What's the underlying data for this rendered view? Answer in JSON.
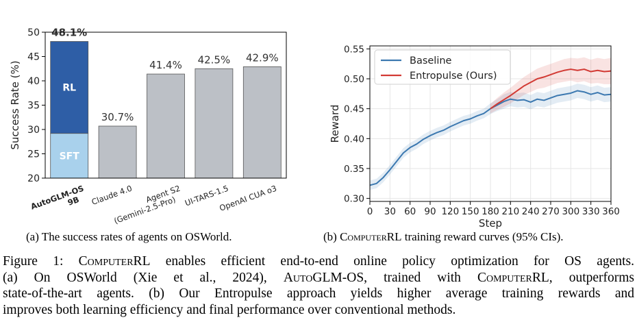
{
  "chart_data": [
    {
      "type": "bar",
      "ylabel": "Success Rate (%)",
      "ylim": [
        20,
        50
      ],
      "yticks": [
        20,
        25,
        30,
        35,
        40,
        45,
        50
      ],
      "categories": [
        "AutoGLM-OS\n9B",
        "Claude 4.0",
        "Agent S2\n(Gemini-2.5-Pro)",
        "UI-TARS-1.5",
        "OpenAI CUA o3"
      ],
      "values": [
        48.1,
        30.7,
        41.4,
        42.5,
        42.9
      ],
      "value_labels": [
        "48.1%",
        "30.7%",
        "41.4%",
        "42.5%",
        "42.9%"
      ],
      "stacked_first_bar": [
        {
          "name": "SFT",
          "value": 29.2,
          "color": "#a9d1ec"
        },
        {
          "name": "RL",
          "value": 18.9,
          "color": "#2e5ea6"
        }
      ],
      "bar_color": "#bcc0c6",
      "highlight_bold_first": true,
      "grid": false
    },
    {
      "type": "line",
      "xlabel": "Step",
      "ylabel": "Reward",
      "xlim": [
        0,
        360
      ],
      "ylim": [
        0.295,
        0.555
      ],
      "xticks": [
        0,
        30,
        60,
        90,
        120,
        150,
        180,
        210,
        240,
        270,
        300,
        330,
        360
      ],
      "yticks": [
        0.3,
        0.35,
        0.4,
        0.45,
        0.5,
        0.55
      ],
      "grid": true,
      "legend": "top-left",
      "series": [
        {
          "name": "Baseline",
          "color": "#3b78b0",
          "x": [
            0,
            10,
            20,
            30,
            40,
            50,
            60,
            70,
            80,
            90,
            100,
            110,
            120,
            130,
            140,
            150,
            160,
            170,
            180,
            190,
            200,
            210,
            220,
            230,
            240,
            250,
            260,
            270,
            280,
            290,
            300,
            310,
            320,
            330,
            340,
            350,
            360
          ],
          "y": [
            0.322,
            0.325,
            0.335,
            0.348,
            0.362,
            0.376,
            0.385,
            0.391,
            0.399,
            0.405,
            0.41,
            0.414,
            0.42,
            0.425,
            0.43,
            0.433,
            0.438,
            0.442,
            0.45,
            0.456,
            0.462,
            0.466,
            0.464,
            0.465,
            0.461,
            0.466,
            0.464,
            0.468,
            0.472,
            0.474,
            0.476,
            0.48,
            0.478,
            0.474,
            0.477,
            0.473,
            0.474
          ],
          "ci_halfwidth": [
            0.008,
            0.008,
            0.008,
            0.008,
            0.008,
            0.008,
            0.008,
            0.008,
            0.008,
            0.008,
            0.008,
            0.008,
            0.008,
            0.008,
            0.008,
            0.008,
            0.008,
            0.008,
            0.009,
            0.01,
            0.012,
            0.012,
            0.012,
            0.012,
            0.012,
            0.012,
            0.012,
            0.012,
            0.012,
            0.012,
            0.012,
            0.012,
            0.012,
            0.012,
            0.012,
            0.012,
            0.012
          ]
        },
        {
          "name": "Entropulse (Ours)",
          "color": "#d23a34",
          "x": [
            180,
            190,
            200,
            210,
            220,
            230,
            240,
            250,
            260,
            270,
            280,
            290,
            300,
            310,
            320,
            330,
            340,
            350,
            360
          ],
          "y": [
            0.45,
            0.458,
            0.465,
            0.472,
            0.48,
            0.488,
            0.494,
            0.5,
            0.503,
            0.507,
            0.511,
            0.514,
            0.516,
            0.514,
            0.516,
            0.512,
            0.514,
            0.512,
            0.513
          ],
          "ci_halfwidth": [
            0.008,
            0.01,
            0.012,
            0.013,
            0.014,
            0.015,
            0.016,
            0.017,
            0.018,
            0.018,
            0.018,
            0.019,
            0.019,
            0.02,
            0.02,
            0.02,
            0.021,
            0.021,
            0.022
          ]
        }
      ]
    }
  ],
  "captions": {
    "a": "(a) The success rates of agents on OSWorld.",
    "b_prefix": "(b) ",
    "b_sc": "ComputerRL",
    "b_suffix": " training reward curves (95% CIs)."
  },
  "figure_caption": {
    "l1_a": "Figure 1: ",
    "l1_sc": "ComputerRL",
    "l1_b": " enables efficient end-to-end online policy optimization for OS agents.",
    "l2_a": "(a) On OSWorld (Xie et al., 2024), ",
    "l2_sc1": "AutoGLM-OS",
    "l2_b": ", trained with ",
    "l2_sc2": "ComputerRL",
    "l2_c": ", outperforms",
    "l3": "state-of-the-art agents.  (b) Our Entropulse approach yields higher average training rewards and",
    "l4": "improves both learning efficiency and final performance over conventional methods."
  }
}
